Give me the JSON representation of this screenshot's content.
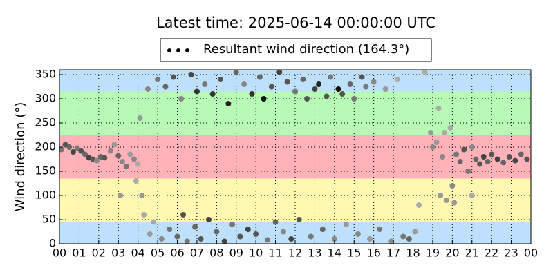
{
  "chart_data": {
    "type": "scatter",
    "title": "Latest time: 2025-06-14 00:00:00 UTC",
    "ylabel": "Wind direction (°)",
    "xlim": [
      0,
      24
    ],
    "ylim": [
      0,
      360
    ],
    "xticks": [
      {
        "value": 0,
        "label": "00"
      },
      {
        "value": 1,
        "label": "01"
      },
      {
        "value": 2,
        "label": "02"
      },
      {
        "value": 3,
        "label": "03"
      },
      {
        "value": 4,
        "label": "04"
      },
      {
        "value": 5,
        "label": "05"
      },
      {
        "value": 6,
        "label": "06"
      },
      {
        "value": 7,
        "label": "07"
      },
      {
        "value": 8,
        "label": "08"
      },
      {
        "value": 9,
        "label": "09"
      },
      {
        "value": 10,
        "label": "10"
      },
      {
        "value": 11,
        "label": "11"
      },
      {
        "value": 12,
        "label": "12"
      },
      {
        "value": 13,
        "label": "13"
      },
      {
        "value": 14,
        "label": "14"
      },
      {
        "value": 15,
        "label": "15"
      },
      {
        "value": 16,
        "label": "16"
      },
      {
        "value": 17,
        "label": "17"
      },
      {
        "value": 18,
        "label": "18"
      },
      {
        "value": 19,
        "label": "19"
      },
      {
        "value": 20,
        "label": "20"
      },
      {
        "value": 21,
        "label": "21"
      },
      {
        "value": 22,
        "label": "22"
      },
      {
        "value": 23,
        "label": "23"
      },
      {
        "value": 24,
        "label": "00"
      }
    ],
    "yticks": [
      0,
      50,
      100,
      150,
      200,
      250,
      300,
      350
    ],
    "grid": true,
    "bands": [
      {
        "from": 0,
        "to": 45,
        "color": "#bfe0fb"
      },
      {
        "from": 45,
        "to": 135,
        "color": "#fff8b0"
      },
      {
        "from": 135,
        "to": 225,
        "color": "#ffb3b8"
      },
      {
        "from": 225,
        "to": 315,
        "color": "#b6fab6"
      },
      {
        "from": 315,
        "to": 360,
        "color": "#bfe0fb"
      }
    ],
    "legend": "top",
    "series": [
      {
        "name": "Resultant wind direction (164.3°)",
        "color": "#000000",
        "x": [
          0.1,
          0.3,
          0.5,
          0.7,
          0.9,
          1.1,
          1.3,
          1.5,
          1.7,
          1.9,
          2.1,
          2.3,
          2.6,
          2.8,
          3.0,
          3.2,
          3.4,
          3.6,
          3.8,
          4.0,
          3.1,
          3.9,
          4.1,
          4.2,
          4.3,
          4.5,
          4.6,
          4.8,
          5.0,
          5.2,
          5.4,
          5.6,
          5.8,
          6.0,
          6.2,
          6.3,
          6.5,
          6.7,
          6.9,
          7.0,
          7.2,
          7.4,
          7.6,
          7.8,
          8.0,
          8.2,
          8.4,
          8.6,
          8.8,
          9.0,
          9.2,
          9.4,
          9.6,
          9.8,
          10.0,
          10.2,
          10.4,
          10.6,
          10.8,
          11.0,
          11.2,
          11.4,
          11.6,
          11.8,
          12.0,
          12.2,
          12.4,
          12.6,
          12.8,
          13.0,
          13.2,
          13.4,
          13.6,
          13.8,
          14.0,
          14.2,
          14.4,
          14.6,
          14.8,
          15.0,
          15.2,
          15.4,
          15.6,
          15.8,
          16.0,
          16.3,
          16.6,
          16.9,
          17.2,
          17.5,
          17.8,
          18.1,
          18.3,
          18.6,
          18.9,
          19.0,
          19.2,
          19.3,
          19.4,
          19.5,
          19.6,
          19.7,
          19.9,
          20.0,
          20.1,
          20.2,
          20.4,
          20.6,
          20.8,
          21.0,
          21.0,
          21.2,
          21.4,
          21.6,
          21.8,
          22.0,
          22.3,
          22.6,
          22.9,
          23.2,
          23.5,
          23.8
        ],
        "values": [
          195,
          205,
          200,
          190,
          198,
          192,
          185,
          178,
          175,
          172,
          180,
          178,
          192,
          205,
          182,
          170,
          160,
          185,
          175,
          165,
          100,
          130,
          260,
          100,
          60,
          320,
          20,
          45,
          340,
          10,
          325,
          30,
          345,
          15,
          300,
          60,
          5,
          350,
          35,
          315,
          10,
          330,
          50,
          310,
          25,
          340,
          5,
          290,
          40,
          355,
          15,
          330,
          30,
          310,
          20,
          345,
          300,
          8,
          325,
          45,
          355,
          25,
          335,
          10,
          315,
          50,
          340,
          300,
          15,
          320,
          330,
          30,
          305,
          345,
          10,
          320,
          310,
          40,
          330,
          300,
          20,
          345,
          325,
          10,
          335,
          30,
          320,
          5,
          340,
          15,
          10,
          25,
          80,
          355,
          230,
          200,
          210,
          280,
          100,
          180,
          230,
          90,
          240,
          120,
          85,
          185,
          170,
          195,
          150,
          200,
          100,
          175,
          165,
          180,
          170,
          185,
          175,
          168,
          180,
          172,
          185,
          175
        ],
        "colors": [
          "#777777",
          "#555555",
          "#666666",
          "#444444",
          "#777777",
          "#555555",
          "#666666",
          "#444444",
          "#555555",
          "#888888",
          "#666666",
          "#555555",
          "#888888",
          "#999999",
          "#666666",
          "#888888",
          "#777777",
          "#999999",
          "#888888",
          "#aaaaaa",
          "#999999",
          "#aaaaaa",
          "#999999",
          "#999999",
          "#aaaaaa",
          "#888888",
          "#999999",
          "#aaaaaa",
          "#777777",
          "#888888",
          "#666666",
          "#777777",
          "#555555",
          "#666666",
          "#888888",
          "#555555",
          "#777777",
          "#444444",
          "#666666",
          "#333333",
          "#555555",
          "#777777",
          "#444444",
          "#333333",
          "#666666",
          "#555555",
          "#444444",
          "#222222",
          "#777777",
          "#666666",
          "#555555",
          "#888888",
          "#444444",
          "#333333",
          "#555555",
          "#666666",
          "#111111",
          "#777777",
          "#555555",
          "#666666",
          "#444444",
          "#888888",
          "#555555",
          "#444444",
          "#777777",
          "#555555",
          "#666666",
          "#555555",
          "#777777",
          "#444444",
          "#222222",
          "#666666",
          "#555555",
          "#777777",
          "#888888",
          "#111111",
          "#555555",
          "#999999",
          "#666666",
          "#777777",
          "#888888",
          "#555555",
          "#777777",
          "#999999",
          "#888888",
          "#777777",
          "#999999",
          "#888888",
          "#aaaaaa",
          "#777777",
          "#666666",
          "#999999",
          "#aaaaaa",
          "#aaaaaa",
          "#999999",
          "#888888",
          "#999999",
          "#aaaaaa",
          "#999999",
          "#888888",
          "#aaaaaa",
          "#999999",
          "#aaaaaa",
          "#888888",
          "#999999",
          "#777777",
          "#666666",
          "#555555",
          "#777777",
          "#888888",
          "#aaaaaa",
          "#666666",
          "#555555",
          "#444444",
          "#666666",
          "#555555",
          "#444444",
          "#666666",
          "#555555",
          "#444444",
          "#666666",
          "#555555"
        ]
      }
    ]
  }
}
